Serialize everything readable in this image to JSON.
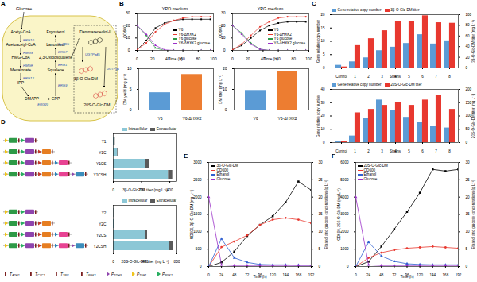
{
  "panel_labels": [
    "A",
    "B",
    "C",
    "D",
    "E",
    "F"
  ],
  "diagram": {
    "source": "Glucose",
    "left_column": [
      "Acetyl-CoA",
      "Acetoacetyl-CoA",
      "HMG-CoA",
      "Mevalonate",
      "IPP"
    ],
    "left_enzymes": [
      "ERG10",
      "HMGS",
      "HMGR",
      "ERG12"
    ],
    "bottom_row": [
      "DMAPP",
      "GPP"
    ],
    "bottom_enzymes": [
      "ERG20",
      "ERG9"
    ],
    "right_column": [
      "Ergosterol",
      "Lanosterol",
      "2,3-Oxidosqualene",
      "Squalene"
    ],
    "right_enzymes": [
      "ERG7",
      "ERG1"
    ],
    "box_enzyme": "PgDDS",
    "box_substrate": "Dammarenediol-II",
    "box_enzymes": [
      "UGTPg45",
      "UGTPg1"
    ],
    "box_products": [
      "3β-O-Glc-DM",
      "20S-O-Glc-DM"
    ]
  },
  "construct_legend": [
    "TADH1",
    "TCYC1",
    "TTPI1",
    "TPGK1",
    "PTDH3",
    "PTEF1",
    "PPGK1"
  ],
  "chart_data": [
    {
      "type": "line",
      "title": "YPD medium",
      "x_label": "Time (h)",
      "y_label": "OD600",
      "x": [
        0,
        12,
        24,
        36,
        48,
        60,
        72,
        84,
        96
      ],
      "xlim": [
        0,
        100
      ],
      "xticks": [
        0,
        20,
        40,
        60,
        80,
        100
      ],
      "ylim": [
        0,
        30
      ],
      "yticks": [
        0,
        10,
        20,
        30
      ],
      "series": [
        {
          "name": "Y6",
          "color": "#000000",
          "marker": "square",
          "values": [
            0.5,
            8,
            18,
            22,
            24,
            25,
            25,
            25,
            25
          ]
        },
        {
          "name": "Y6-ΔHXK2",
          "color": "#e8382f",
          "marker": "circle",
          "values": [
            0.5,
            6,
            15,
            21,
            24,
            26,
            27,
            27,
            27
          ]
        },
        {
          "name": "Y6 glucose",
          "color": "#2f9a47",
          "marker": "triangle",
          "values": [
            20,
            12,
            2,
            0,
            0,
            0,
            0,
            0,
            0
          ]
        },
        {
          "name": "Y6-ΔHXK2 glucose",
          "color": "#9b30c8",
          "marker": "triangle",
          "values": [
            20,
            13,
            4,
            0.5,
            0,
            0,
            0,
            0,
            0
          ]
        }
      ]
    },
    {
      "type": "line",
      "title": "YPG medium",
      "x_label": "Time (h)",
      "y_label": "OD600",
      "x": [
        0,
        12,
        24,
        36,
        48,
        60,
        72,
        84,
        96
      ],
      "xlim": [
        0,
        100
      ],
      "xticks": [
        0,
        20,
        40,
        60,
        80,
        100
      ],
      "ylim": [
        0,
        30
      ],
      "yticks": [
        0,
        10,
        20,
        30
      ],
      "series": [
        {
          "name": "Y6",
          "color": "#000000",
          "marker": "square",
          "values": [
            0.5,
            4,
            10,
            16,
            20,
            22,
            23,
            23,
            23
          ]
        },
        {
          "name": "Y6-ΔHXK2",
          "color": "#e8382f",
          "marker": "circle",
          "values": [
            0.5,
            5,
            12,
            19,
            23,
            26,
            27,
            27,
            27
          ]
        },
        {
          "name": "Y6 glucose",
          "color": "#2f9a47",
          "marker": "triangle",
          "values": [
            20,
            14,
            6,
            1,
            0,
            0,
            0,
            0,
            0
          ]
        },
        {
          "name": "Y6-ΔHXK2 glucose",
          "color": "#9b30c8",
          "marker": "triangle",
          "values": [
            20,
            13,
            5,
            1,
            0,
            0,
            0,
            0,
            0
          ]
        }
      ]
    },
    {
      "type": "bar",
      "y_label": "DM yield (mg g⁻¹)",
      "categories": [
        "Y6",
        "Y6-ΔHXK2"
      ],
      "values": [
        4.2,
        8.6
      ],
      "colors": [
        "#5b9bd5",
        "#ed7d31"
      ],
      "ylim": [
        0,
        10
      ],
      "yticks": [
        0,
        5,
        10
      ]
    },
    {
      "type": "bar",
      "y_label": "DM titer (mg L⁻¹)",
      "categories": [
        "Y6",
        "Y6-ΔHXK2"
      ],
      "values": [
        9.5,
        18.7
      ],
      "colors": [
        "#5b9bd5",
        "#ed7d31"
      ],
      "ylim": [
        0,
        20
      ],
      "yticks": [
        0,
        10,
        20
      ]
    },
    {
      "type": "bar",
      "x_label": "Strains",
      "y_label": "Gene relative copy number",
      "y2_label": "3β-O-Glc-DM titer (mg L⁻¹)",
      "categories": [
        "Control",
        "1",
        "2",
        "3",
        "4",
        "5",
        "6",
        "7",
        "8"
      ],
      "ylim": [
        0,
        20
      ],
      "yticks": [
        0,
        5,
        10,
        15,
        20
      ],
      "y2lim": [
        0,
        100
      ],
      "y2ticks": [
        0,
        20,
        40,
        60,
        80,
        100
      ],
      "legend": "top-left",
      "series": [
        {
          "name": "Gene relative copy number",
          "color": "#5b9bd5",
          "values": [
            1,
            2.3,
            3.8,
            6.5,
            7.8,
            9.2,
            12.5,
            9,
            10.2
          ]
        },
        {
          "name": "3β-O-Glc-DM titer",
          "color": "#e8382f",
          "axis": "y2",
          "values": [
            2,
            42,
            55,
            70,
            88,
            87,
            98,
            85,
            84
          ]
        }
      ]
    },
    {
      "type": "bar",
      "x_label": "Strains",
      "y_label": "Gene relative copy number",
      "y2_label": "20S-O-Glc-DM titer (mg L⁻¹)",
      "categories": [
        "Control",
        "1",
        "2",
        "3",
        "4",
        "5",
        "6",
        "7",
        "8"
      ],
      "ylim": [
        0,
        40
      ],
      "yticks": [
        0,
        10,
        20,
        30,
        40
      ],
      "y2lim": [
        0,
        200
      ],
      "y2ticks": [
        0,
        50,
        100,
        150,
        200
      ],
      "legend": "top-left",
      "series": [
        {
          "name": "Gene relative copy number",
          "color": "#5b9bd5",
          "values": [
            1,
            5,
            18,
            32,
            24,
            19,
            15,
            12,
            11
          ]
        },
        {
          "name": "20S-O-Glc-DM titer",
          "color": "#e8382f",
          "axis": "y2",
          "values": [
            3,
            112,
            125,
            140,
            150,
            140,
            160,
            178,
            125
          ]
        }
      ]
    },
    {
      "type": "bar",
      "orientation": "horizontal",
      "stacked": true,
      "x_label": "3β-O-Glc-DM titer (mg L⁻¹)",
      "categories": [
        "Y1",
        "Y1C",
        "Y1CS",
        "Y1CSH"
      ],
      "xlim": [
        0,
        450
      ],
      "xticks": [
        0,
        200,
        400
      ],
      "legend": "top-right",
      "series": [
        {
          "name": "Intracellular",
          "color": "#8cc7d6",
          "values": [
            10,
            30,
            230,
            390
          ]
        },
        {
          "name": "Extracellular",
          "color": "#5a5a5a",
          "values": [
            3,
            8,
            25,
            30
          ]
        }
      ]
    },
    {
      "type": "bar",
      "orientation": "horizontal",
      "stacked": true,
      "x_label": "20S-O-Glc-DM titer (mg L⁻¹)",
      "categories": [
        "Y2",
        "Y2C",
        "Y2CS",
        "Y2CSH"
      ],
      "xlim": [
        0,
        800
      ],
      "xticks": [
        0,
        400,
        800
      ],
      "legend": "top-right",
      "series": [
        {
          "name": "Intracellular",
          "color": "#8cc7d6",
          "values": [
            5,
            15,
            400,
            700
          ]
        },
        {
          "name": "Extracellular",
          "color": "#5a5a5a",
          "values": [
            2,
            5,
            30,
            50
          ]
        }
      ]
    },
    {
      "type": "line",
      "x_label": "Time (h)",
      "y_label": "OD600, 3β-O-Glc-DM (mg L⁻¹)",
      "y2_label": "Ethanol and glucose concentrations (g L⁻¹)",
      "x": [
        0,
        24,
        48,
        72,
        96,
        120,
        144,
        168,
        192
      ],
      "xlim": [
        0,
        192
      ],
      "xticks": [
        0,
        24,
        48,
        72,
        96,
        120,
        144,
        168,
        192
      ],
      "ylim": [
        0,
        3000
      ],
      "yticks": [
        0,
        500,
        1000,
        1500,
        2000,
        2500,
        3000
      ],
      "y2lim": [
        0,
        30
      ],
      "y2ticks": [
        0,
        5,
        10,
        15,
        20,
        25,
        30
      ],
      "legend": "top-left",
      "series": [
        {
          "name": "3β-O-Glc-DM",
          "color": "#000000",
          "marker": "square",
          "values": [
            0,
            120,
            430,
            880,
            1200,
            1450,
            1850,
            2450,
            2200
          ]
        },
        {
          "name": "OD600",
          "color": "#e8382f",
          "marker": "circle",
          "values": [
            2,
            560,
            720,
            900,
            1200,
            1350,
            1400,
            1350,
            1250
          ]
        },
        {
          "name": "Ethanol",
          "color": "#2f5fd0",
          "marker": "triangle",
          "axis": "y2",
          "values": [
            0,
            8,
            2.5,
            1.2,
            0.6,
            0.5,
            0.5,
            0.4,
            0.4
          ]
        },
        {
          "name": "Glucose",
          "color": "#9b30c8",
          "marker": "triangle",
          "axis": "y2",
          "values": [
            20,
            0.5,
            0.3,
            0.3,
            0.3,
            0.3,
            0.3,
            0.3,
            0.3
          ]
        }
      ]
    },
    {
      "type": "line",
      "x_label": "Time (h)",
      "y_label": "OD600, 20S-O-Glc-DM (mg L⁻¹)",
      "y2_label": "Ethanol and glucose concentrations (g L⁻¹)",
      "x": [
        0,
        24,
        48,
        72,
        96,
        120,
        144,
        168,
        192
      ],
      "xlim": [
        0,
        192
      ],
      "xticks": [
        0,
        24,
        48,
        72,
        96,
        120,
        144,
        168,
        192
      ],
      "ylim": [
        0,
        6000
      ],
      "yticks": [
        0,
        1000,
        2000,
        3000,
        4000,
        5000,
        6000
      ],
      "y2lim": [
        0,
        30
      ],
      "y2ticks": [
        0,
        5,
        10,
        15,
        20,
        25,
        30
      ],
      "legend": "top-left",
      "series": [
        {
          "name": "20S-O-Glc-DM",
          "color": "#000000",
          "marker": "square",
          "values": [
            0,
            280,
            1150,
            2150,
            3150,
            4250,
            5600,
            5500,
            5600
          ]
        },
        {
          "name": "OD600",
          "color": "#e8382f",
          "marker": "circle",
          "values": [
            2,
            500,
            800,
            950,
            1050,
            1100,
            1150,
            1100,
            1050
          ]
        },
        {
          "name": "Ethanol",
          "color": "#2f5fd0",
          "marker": "triangle",
          "axis": "y2",
          "values": [
            0,
            7,
            3,
            1.5,
            0.8,
            0.6,
            0.5,
            0.5,
            0.5
          ]
        },
        {
          "name": "Glucose",
          "color": "#9b30c8",
          "marker": "triangle",
          "axis": "y2",
          "values": [
            20,
            0.5,
            0.3,
            0.3,
            0.3,
            0.3,
            0.3,
            0.3,
            0.3
          ]
        }
      ]
    }
  ]
}
